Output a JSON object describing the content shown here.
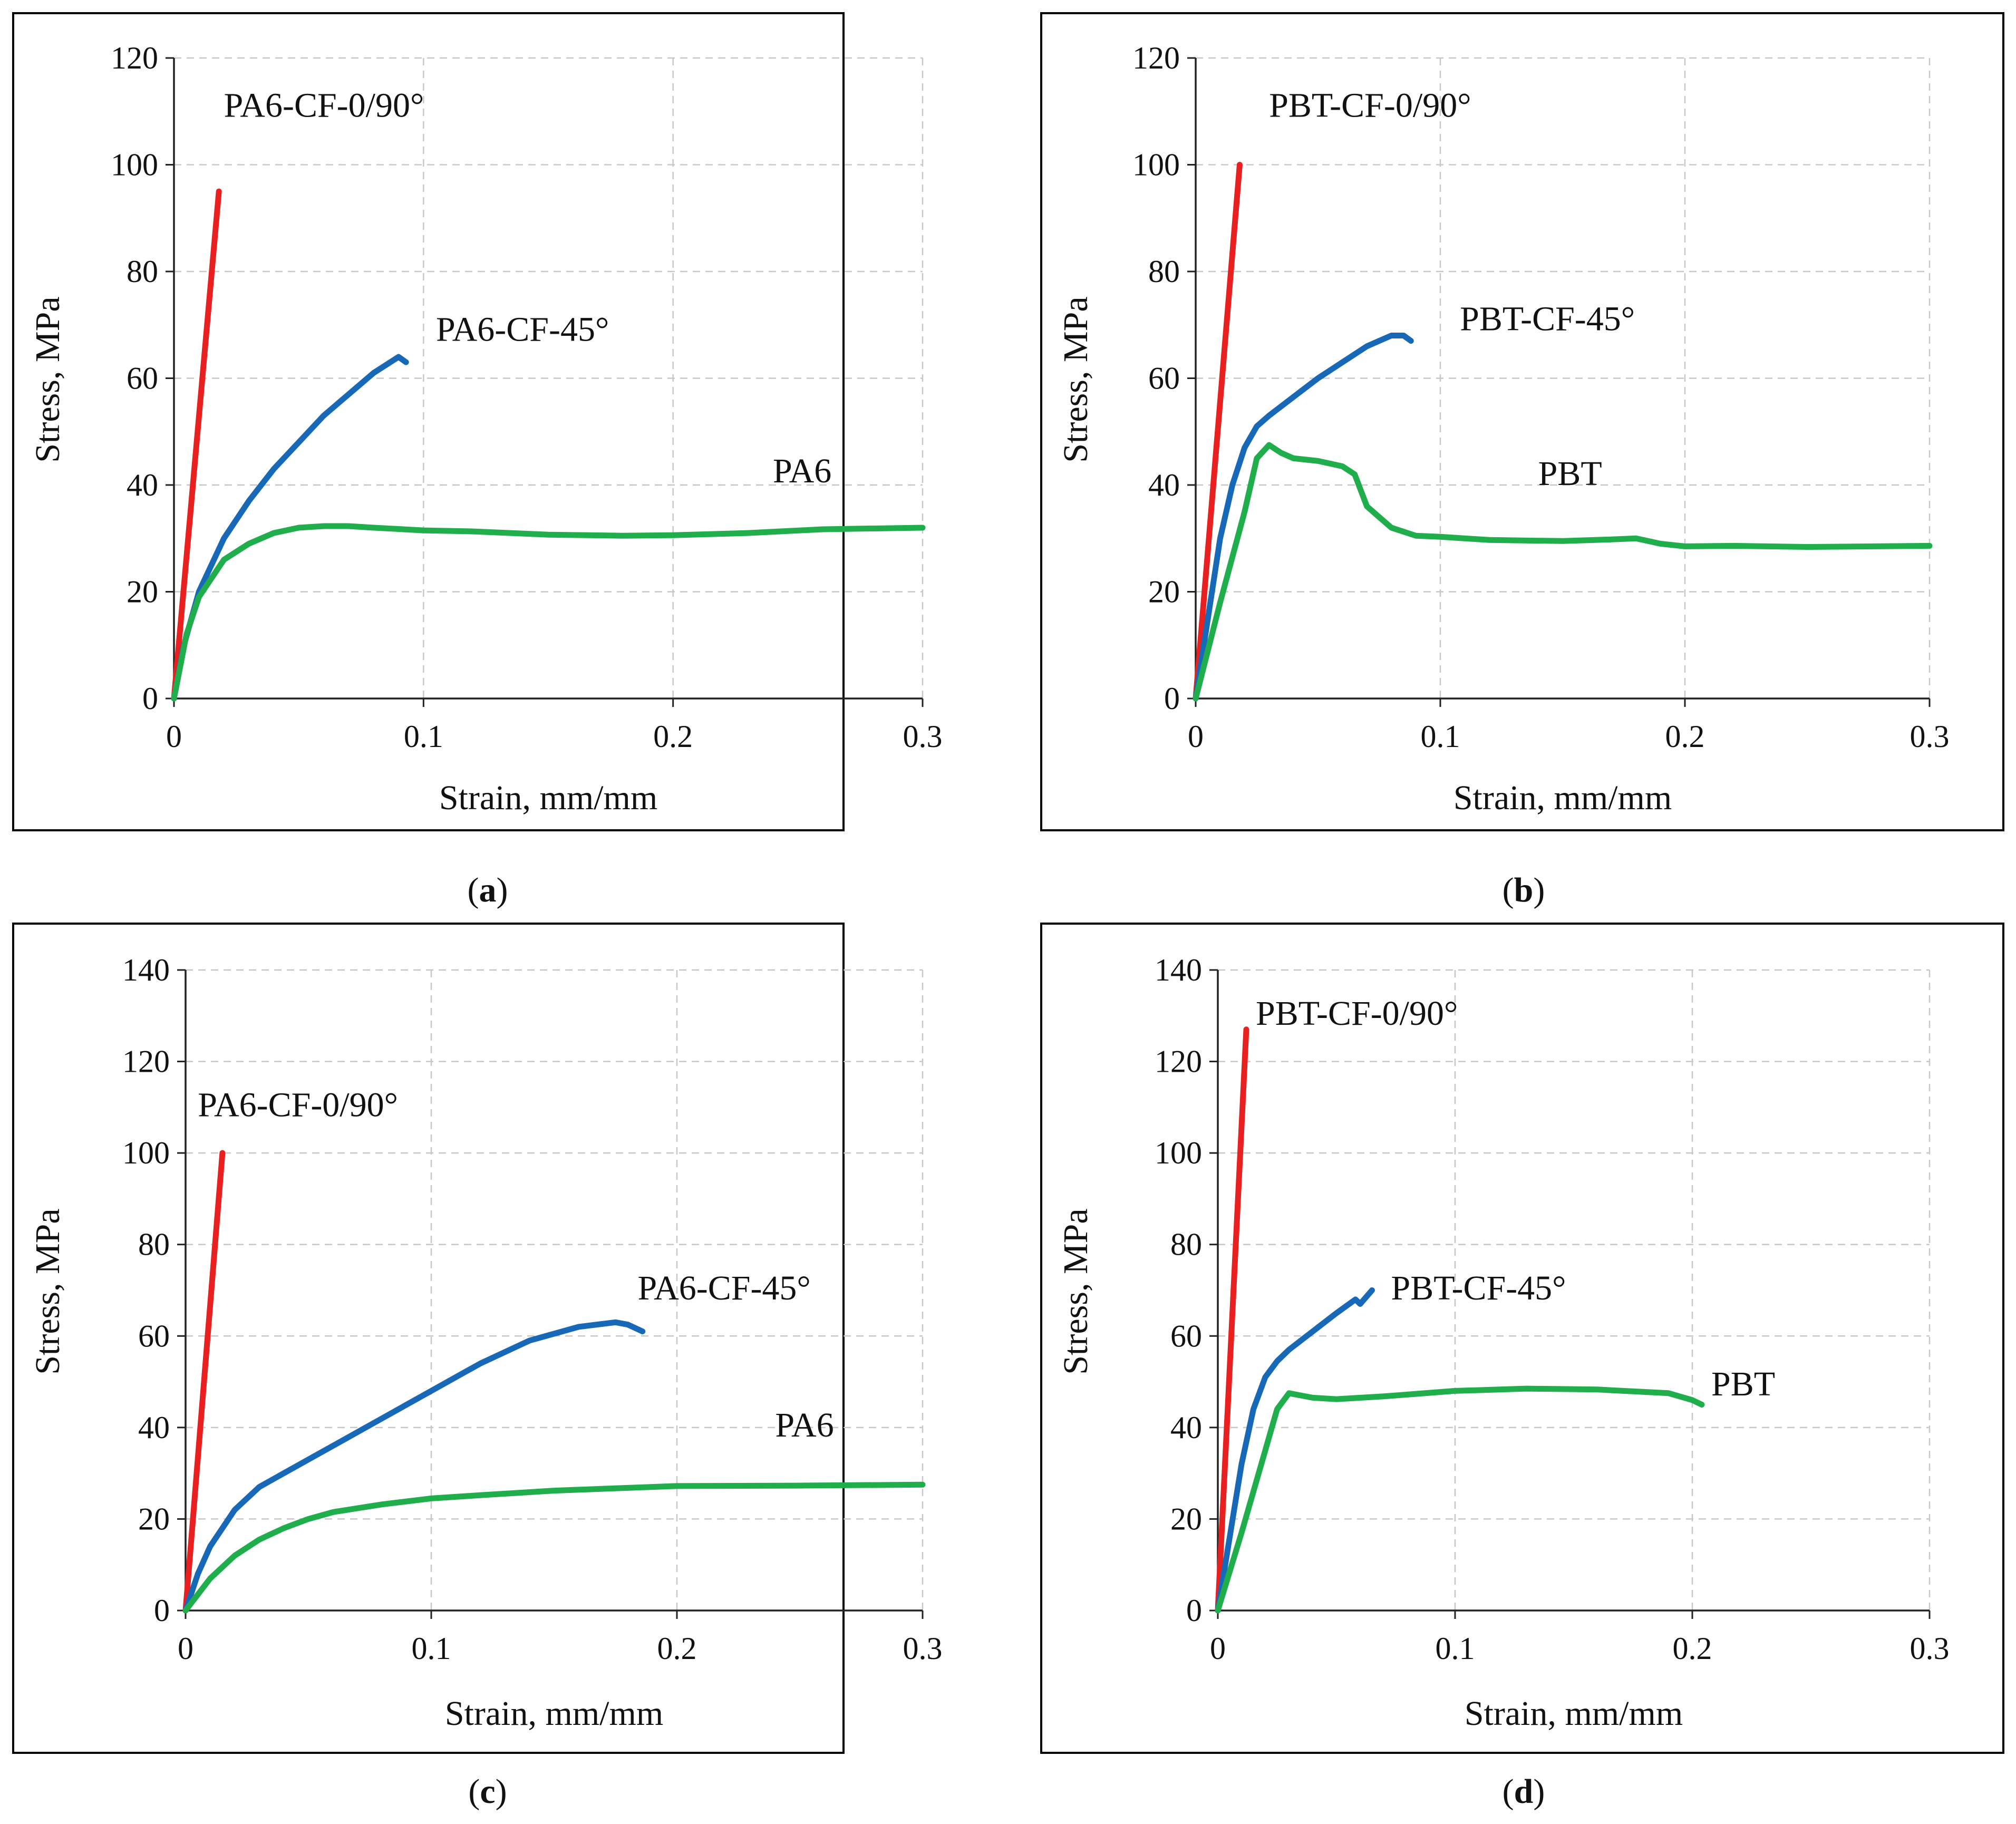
{
  "chart_data": [
    {
      "type": "line",
      "panel": "a",
      "caption": "(a)",
      "xlabel": "Strain, mm/mm",
      "ylabel": "Stress, MPa",
      "xlim": [
        0,
        0.3
      ],
      "ylim": [
        0,
        120
      ],
      "xticks": [
        "0",
        "0.1",
        "0.2",
        "0.3"
      ],
      "yticks": [
        "0",
        "20",
        "40",
        "60",
        "80",
        "100",
        "120"
      ],
      "grid": true,
      "series": [
        {
          "label": "PA6-CF-0/90°",
          "color": "#e8201f",
          "x": [
            0,
            0.018
          ],
          "y": [
            0,
            95
          ],
          "label_x": 0.02,
          "label_y": 109
        },
        {
          "label": "PA6-CF-45°",
          "color": "#1769b8",
          "x": [
            0,
            0.004,
            0.01,
            0.02,
            0.03,
            0.04,
            0.05,
            0.06,
            0.07,
            0.08,
            0.09,
            0.093
          ],
          "y": [
            0,
            10,
            20,
            30,
            37,
            43,
            48,
            53,
            57,
            61,
            64,
            63
          ],
          "label_x": 0.105,
          "label_y": 67
        },
        {
          "label": "PA6",
          "color": "#1fae4b",
          "x": [
            0,
            0.005,
            0.01,
            0.02,
            0.03,
            0.04,
            0.05,
            0.06,
            0.07,
            0.08,
            0.1,
            0.12,
            0.15,
            0.18,
            0.2,
            0.23,
            0.26,
            0.3
          ],
          "y": [
            0,
            12,
            19,
            26,
            29,
            31,
            32,
            32.3,
            32.3,
            32,
            31.5,
            31.3,
            30.7,
            30.5,
            30.6,
            31,
            31.7,
            32
          ],
          "label_x": 0.24,
          "label_y": 40.5
        }
      ]
    },
    {
      "type": "line",
      "panel": "b",
      "caption": "(b)",
      "xlabel": "Strain, mm/mm",
      "ylabel": "Stress, MPa",
      "xlim": [
        0,
        0.3
      ],
      "ylim": [
        0,
        120
      ],
      "xticks": [
        "0",
        "0.1",
        "0.2",
        "0.3"
      ],
      "yticks": [
        "0",
        "20",
        "40",
        "60",
        "80",
        "100",
        "120"
      ],
      "grid": true,
      "series": [
        {
          "label": "PBT-CF-0/90°",
          "color": "#e8201f",
          "x": [
            0,
            0.018
          ],
          "y": [
            0,
            100
          ],
          "label_x": 0.03,
          "label_y": 109
        },
        {
          "label": "PBT-CF-45°",
          "color": "#1769b8",
          "x": [
            0,
            0.005,
            0.01,
            0.015,
            0.02,
            0.025,
            0.03,
            0.04,
            0.05,
            0.06,
            0.07,
            0.08,
            0.085,
            0.088
          ],
          "y": [
            0,
            15,
            30,
            40,
            47,
            51,
            53,
            56.5,
            60,
            63,
            66,
            68,
            68,
            67
          ],
          "label_x": 0.108,
          "label_y": 69
        },
        {
          "label": "PBT",
          "color": "#1fae4b",
          "x": [
            0,
            0.01,
            0.02,
            0.025,
            0.03,
            0.035,
            0.04,
            0.05,
            0.06,
            0.065,
            0.07,
            0.075,
            0.08,
            0.09,
            0.1,
            0.12,
            0.15,
            0.17,
            0.18,
            0.19,
            0.2,
            0.22,
            0.25,
            0.3
          ],
          "y": [
            0,
            18,
            35,
            45,
            47.5,
            46,
            45,
            44.5,
            43.5,
            42,
            36,
            34,
            32,
            30.5,
            30.3,
            29.7,
            29.5,
            29.8,
            30,
            29,
            28.5,
            28.6,
            28.4,
            28.6
          ],
          "label_x": 0.14,
          "label_y": 40
        }
      ]
    },
    {
      "type": "line",
      "panel": "c",
      "caption": "(c)",
      "xlabel": "Strain, mm/mm",
      "ylabel": "Stress, MPa",
      "xlim": [
        0,
        0.3
      ],
      "ylim": [
        0,
        140
      ],
      "xticks": [
        "0",
        "0.1",
        "0.2",
        "0.3"
      ],
      "yticks": [
        "0",
        "20",
        "40",
        "60",
        "80",
        "100",
        "120",
        "140"
      ],
      "grid": true,
      "series": [
        {
          "label": "PA6-CF-0/90°",
          "color": "#e8201f",
          "x": [
            0,
            0.015
          ],
          "y": [
            0,
            100
          ],
          "label_x": 0.005,
          "label_y": 108
        },
        {
          "label": "PA6-CF-45°",
          "color": "#1769b8",
          "x": [
            0,
            0.005,
            0.01,
            0.02,
            0.03,
            0.04,
            0.05,
            0.06,
            0.08,
            0.1,
            0.12,
            0.14,
            0.16,
            0.175,
            0.18,
            0.186
          ],
          "y": [
            0,
            8,
            14,
            22,
            27,
            30,
            33,
            36,
            42,
            48,
            54,
            59,
            62,
            63,
            62.5,
            61
          ],
          "label_x": 0.184,
          "label_y": 68
        },
        {
          "label": "PA6",
          "color": "#1fae4b",
          "x": [
            0,
            0.01,
            0.02,
            0.03,
            0.04,
            0.05,
            0.06,
            0.08,
            0.1,
            0.12,
            0.15,
            0.2,
            0.25,
            0.3
          ],
          "y": [
            0,
            7,
            12,
            15.5,
            18,
            20,
            21.5,
            23.2,
            24.5,
            25.2,
            26.2,
            27.2,
            27.3,
            27.5
          ],
          "label_x": 0.24,
          "label_y": 38
        }
      ]
    },
    {
      "type": "line",
      "panel": "d",
      "caption": "(d)",
      "xlabel": "Strain, mm/mm",
      "ylabel": "Stress, MPa",
      "xlim": [
        0,
        0.3
      ],
      "ylim": [
        0,
        140
      ],
      "xticks": [
        "0",
        "0.1",
        "0.2",
        "0.3"
      ],
      "yticks": [
        "0",
        "20",
        "40",
        "60",
        "80",
        "100",
        "120",
        "140"
      ],
      "grid": true,
      "series": [
        {
          "label": "PBT-CF-0/90°",
          "color": "#e8201f",
          "x": [
            0,
            0.012
          ],
          "y": [
            0,
            127
          ],
          "label_x": 0.016,
          "label_y": 128
        },
        {
          "label": "PBT-CF-45°",
          "color": "#1769b8",
          "x": [
            0,
            0.005,
            0.01,
            0.015,
            0.02,
            0.025,
            0.03,
            0.04,
            0.05,
            0.058,
            0.06,
            0.065
          ],
          "y": [
            0,
            16,
            32,
            44,
            51,
            54.5,
            57,
            61,
            65,
            68,
            67,
            70
          ],
          "label_x": 0.073,
          "label_y": 68
        },
        {
          "label": "PBT",
          "color": "#1fae4b",
          "x": [
            0,
            0.01,
            0.02,
            0.025,
            0.03,
            0.035,
            0.04,
            0.05,
            0.07,
            0.1,
            0.13,
            0.16,
            0.19,
            0.2,
            0.204
          ],
          "y": [
            0,
            17,
            35,
            44,
            47.5,
            47,
            46.5,
            46.2,
            46.8,
            48,
            48.5,
            48.3,
            47.5,
            46,
            45
          ],
          "label_x": 0.208,
          "label_y": 47
        }
      ]
    }
  ]
}
